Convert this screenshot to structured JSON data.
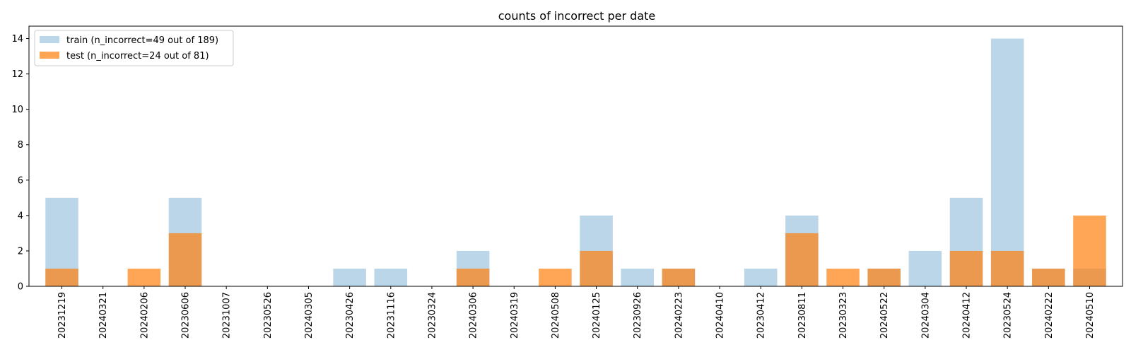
{
  "chart_data": {
    "type": "bar",
    "title": "counts of incorrect per date",
    "xlabel": "",
    "ylabel": "",
    "ylim": [
      0,
      14.7
    ],
    "yticks": [
      0,
      2,
      4,
      6,
      8,
      10,
      12,
      14
    ],
    "grid": false,
    "legend_position": "upper-left",
    "categories": [
      "20231219",
      "20240321",
      "20240206",
      "20230606",
      "20231007",
      "20230526",
      "20240305",
      "20230426",
      "20231116",
      "20230324",
      "20240306",
      "20240319",
      "20240508",
      "20240125",
      "20230926",
      "20240223",
      "20240410",
      "20230412",
      "20230811",
      "20230323",
      "20240522",
      "20240304",
      "20240412",
      "20230524",
      "20240222",
      "20240510"
    ],
    "series": [
      {
        "name": "train (n_incorrect=49 out of 189)",
        "color": "#1f77b4",
        "opacity": 0.3,
        "values": [
          5,
          0,
          0,
          5,
          0,
          0,
          0,
          1,
          1,
          0,
          2,
          0,
          0,
          4,
          1,
          1,
          0,
          1,
          4,
          0,
          1,
          2,
          5,
          14,
          1,
          1
        ]
      },
      {
        "name": "test (n_incorrect=24 out of 81)",
        "color": "#ff7f0e",
        "opacity": 0.7,
        "values": [
          1,
          0,
          1,
          3,
          0,
          0,
          0,
          0,
          0,
          0,
          1,
          0,
          1,
          2,
          0,
          1,
          0,
          0,
          3,
          1,
          1,
          0,
          2,
          2,
          1,
          4
        ]
      }
    ]
  }
}
